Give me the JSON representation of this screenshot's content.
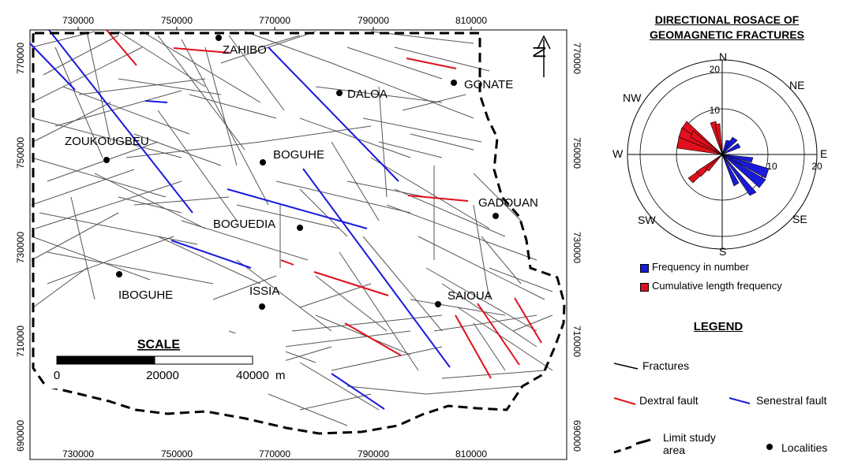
{
  "map": {
    "x_ticks": [
      "730000",
      "750000",
      "770000",
      "790000",
      "810000"
    ],
    "y_ticks": [
      "770000",
      "750000",
      "730000",
      "710000",
      "690000"
    ],
    "north_arrow_label": "N",
    "localities": [
      {
        "name": "ZAHIBO"
      },
      {
        "name": "DALOA"
      },
      {
        "name": "GONATE"
      },
      {
        "name": "ZOUKOUGBEU"
      },
      {
        "name": "BOGUHE"
      },
      {
        "name": "GADOUAN"
      },
      {
        "name": "BOGUEDIA"
      },
      {
        "name": "IBOGUHE"
      },
      {
        "name": "ISSIA"
      },
      {
        "name": "SAIOUA"
      }
    ],
    "scale": {
      "title": "SCALE",
      "label_0": "0",
      "label_mid": "20000",
      "label_end": "40000",
      "unit": "m"
    }
  },
  "rosace": {
    "title_line1": "DIRECTIONAL ROSACE OF",
    "title_line2": "GEOMAGNETIC FRACTURES",
    "directions": {
      "n": "N",
      "ne": "NE",
      "e": "E",
      "se": "SE",
      "s": "S",
      "sw": "SW",
      "w": "W",
      "nw": "NW"
    },
    "ring_labels": [
      "20",
      "10",
      "10",
      "20"
    ],
    "key_blue": "Frequency in number",
    "key_red": "Cumulative length frequency",
    "colors": {
      "frequency": "#1a1adb",
      "length": "#e0101c"
    }
  },
  "legend": {
    "title": "LEGEND",
    "fractures": "Fractures",
    "dextral": "Dextral fault",
    "senestral": "Senestral fault",
    "limit_line1": "Limit study",
    "limit_line2": "area",
    "localities": "Localities",
    "colors": {
      "dextral": "#e0101c",
      "senestral": "#1a1adb",
      "fracture": "#555555"
    }
  }
}
